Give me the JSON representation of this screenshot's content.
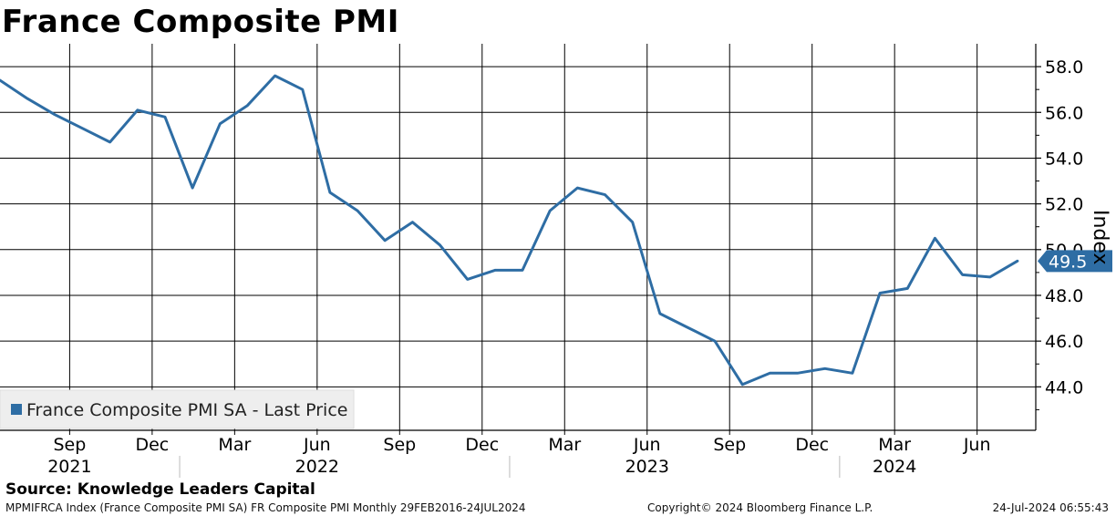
{
  "title": "France Composite PMI",
  "source": "Source: Knowledge Leaders Capital",
  "footer": {
    "left": "MPMIFRCA Index (France Composite PMI SA) FR Composite PMI  Monthly 29FEB2016-24JUL2024",
    "center": "Copyright© 2024 Bloomberg Finance L.P.",
    "right": "24-Jul-2024 06:55:43"
  },
  "colors": {
    "line": "#2e6da4",
    "grid": "#000000",
    "legend_bg": "#eeeeee",
    "legend_swatch": "#2e6da4",
    "last_value_bg": "#2e6da4"
  },
  "chart_data": {
    "type": "line",
    "title": "France Composite PMI",
    "ylabel": "Index",
    "y_axis_side": "right",
    "ylim": [
      42.1,
      59.0
    ],
    "xlim": [
      "2021-06-15",
      "2024-08-05"
    ],
    "grid": true,
    "legend_placement": "bottom-left",
    "y_ticks": [
      "44.0",
      "46.0",
      "48.0",
      "50.0",
      "52.0",
      "54.0",
      "56.0",
      "58.0"
    ],
    "x_tick_labels": [
      {
        "date": "2021-09",
        "month": "Sep",
        "year": "2021"
      },
      {
        "date": "2021-12",
        "month": "Dec",
        "year": ""
      },
      {
        "date": "2022-03",
        "month": "Mar",
        "year": ""
      },
      {
        "date": "2022-06",
        "month": "Jun",
        "year": "2022"
      },
      {
        "date": "2022-09",
        "month": "Sep",
        "year": ""
      },
      {
        "date": "2022-12",
        "month": "Dec",
        "year": ""
      },
      {
        "date": "2023-03",
        "month": "Mar",
        "year": ""
      },
      {
        "date": "2023-06",
        "month": "Jun",
        "year": "2023"
      },
      {
        "date": "2023-09",
        "month": "Sep",
        "year": ""
      },
      {
        "date": "2023-12",
        "month": "Dec",
        "year": ""
      },
      {
        "date": "2024-03",
        "month": "Mar",
        "year": "2024"
      },
      {
        "date": "2024-06",
        "month": "Jun",
        "year": ""
      }
    ],
    "year_separators": [
      "2022-01",
      "2023-01",
      "2024-01"
    ],
    "series": [
      {
        "name": "France Composite PMI SA - Last Price",
        "last_value_label": "49.5",
        "points": [
          {
            "x": "2021-06",
            "y": 57.4
          },
          {
            "x": "2021-07",
            "y": 56.6
          },
          {
            "x": "2021-08",
            "y": 55.9
          },
          {
            "x": "2021-09",
            "y": 55.3
          },
          {
            "x": "2021-10",
            "y": 54.7
          },
          {
            "x": "2021-11",
            "y": 56.1
          },
          {
            "x": "2021-12",
            "y": 55.8
          },
          {
            "x": "2022-01",
            "y": 52.7
          },
          {
            "x": "2022-02",
            "y": 55.5
          },
          {
            "x": "2022-03",
            "y": 56.3
          },
          {
            "x": "2022-04",
            "y": 57.6
          },
          {
            "x": "2022-05",
            "y": 57.0
          },
          {
            "x": "2022-06",
            "y": 52.5
          },
          {
            "x": "2022-07",
            "y": 51.7
          },
          {
            "x": "2022-08",
            "y": 50.4
          },
          {
            "x": "2022-09",
            "y": 51.2
          },
          {
            "x": "2022-10",
            "y": 50.2
          },
          {
            "x": "2022-11",
            "y": 48.7
          },
          {
            "x": "2022-12",
            "y": 49.1
          },
          {
            "x": "2023-01",
            "y": 49.1
          },
          {
            "x": "2023-02",
            "y": 51.7
          },
          {
            "x": "2023-03",
            "y": 52.7
          },
          {
            "x": "2023-04",
            "y": 52.4
          },
          {
            "x": "2023-05",
            "y": 51.2
          },
          {
            "x": "2023-06",
            "y": 47.2
          },
          {
            "x": "2023-07",
            "y": 46.6
          },
          {
            "x": "2023-08",
            "y": 46.0
          },
          {
            "x": "2023-09",
            "y": 44.1
          },
          {
            "x": "2023-10",
            "y": 44.6
          },
          {
            "x": "2023-11",
            "y": 44.6
          },
          {
            "x": "2023-12",
            "y": 44.8
          },
          {
            "x": "2024-01",
            "y": 44.6
          },
          {
            "x": "2024-02",
            "y": 48.1
          },
          {
            "x": "2024-03",
            "y": 48.3
          },
          {
            "x": "2024-04",
            "y": 50.5
          },
          {
            "x": "2024-05",
            "y": 48.9
          },
          {
            "x": "2024-06",
            "y": 48.8
          },
          {
            "x": "2024-07",
            "y": 49.5
          }
        ]
      }
    ]
  }
}
